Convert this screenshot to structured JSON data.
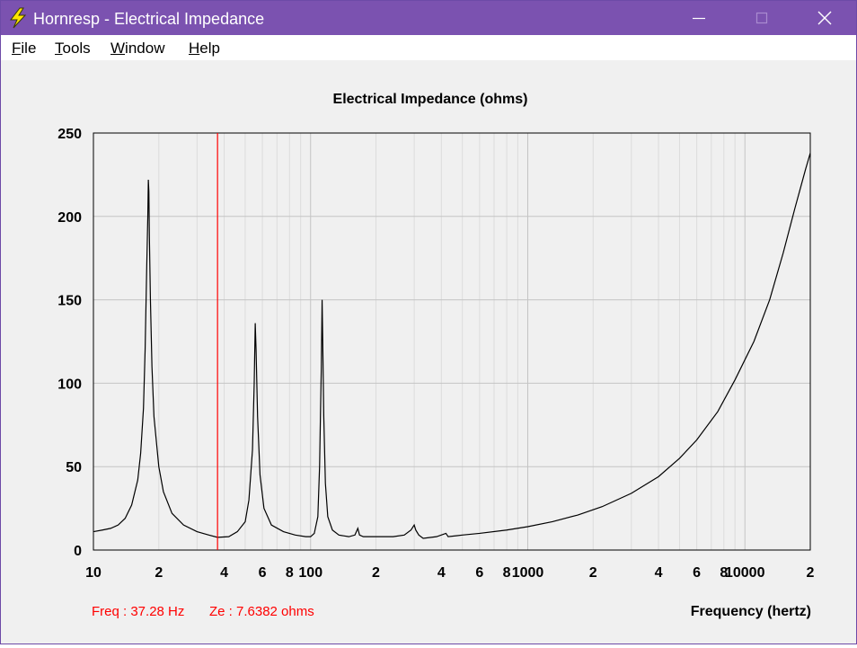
{
  "window": {
    "title": "Hornresp - Electrical Impedance",
    "accent_color": "#7b52b0",
    "icon": "lightning-bolt-icon"
  },
  "menu": {
    "items": [
      {
        "label": "File",
        "accel": "F",
        "rest": "ile"
      },
      {
        "label": "Tools",
        "accel": "T",
        "rest": "ools"
      },
      {
        "label": "Window",
        "accel": "W",
        "rest": "indow"
      },
      {
        "label": "Help",
        "accel": "H",
        "rest": "elp"
      }
    ]
  },
  "readout": {
    "freq_label": "Freq : 37.28 Hz",
    "ze_label": "Ze : 7.6382 ohms",
    "cursor_color": "#ff0000"
  },
  "chart_data": {
    "type": "line",
    "title": "Electrical Impedance (ohms)",
    "xlabel": "Frequency (hertz)",
    "ylabel": "",
    "x_scale": "log",
    "xlim": [
      10,
      20000
    ],
    "ylim": [
      0,
      250
    ],
    "yticks": [
      0,
      50,
      100,
      150,
      200,
      250
    ],
    "xtick_labels": [
      {
        "value": 10,
        "label": "10"
      },
      {
        "value": 20,
        "label": "2"
      },
      {
        "value": 40,
        "label": "4"
      },
      {
        "value": 60,
        "label": "6"
      },
      {
        "value": 80,
        "label": "8"
      },
      {
        "value": 100,
        "label": "100"
      },
      {
        "value": 200,
        "label": "2"
      },
      {
        "value": 400,
        "label": "4"
      },
      {
        "value": 600,
        "label": "6"
      },
      {
        "value": 800,
        "label": "8"
      },
      {
        "value": 1000,
        "label": "1000"
      },
      {
        "value": 2000,
        "label": "2"
      },
      {
        "value": 4000,
        "label": "4"
      },
      {
        "value": 6000,
        "label": "6"
      },
      {
        "value": 8000,
        "label": "8"
      },
      {
        "value": 10000,
        "label": "10000"
      },
      {
        "value": 20000,
        "label": "2"
      }
    ],
    "grid": true,
    "cursor_x": 37.28,
    "series": [
      {
        "name": "",
        "color": "#000000",
        "points": [
          [
            10,
            11
          ],
          [
            11,
            12
          ],
          [
            12,
            13
          ],
          [
            13,
            15
          ],
          [
            14,
            19
          ],
          [
            15,
            27
          ],
          [
            16,
            42
          ],
          [
            16.5,
            58
          ],
          [
            17,
            85
          ],
          [
            17.3,
            120
          ],
          [
            17.6,
            170
          ],
          [
            17.8,
            200
          ],
          [
            17.9,
            222
          ],
          [
            18.0,
            215
          ],
          [
            18.1,
            188
          ],
          [
            18.3,
            150
          ],
          [
            18.6,
            110
          ],
          [
            19,
            80
          ],
          [
            20,
            50
          ],
          [
            21,
            35
          ],
          [
            23,
            22
          ],
          [
            26,
            15
          ],
          [
            30,
            11
          ],
          [
            34,
            9
          ],
          [
            37.28,
            7.6
          ],
          [
            42,
            8
          ],
          [
            46,
            11
          ],
          [
            50,
            17
          ],
          [
            52,
            30
          ],
          [
            54,
            60
          ],
          [
            55,
            100
          ],
          [
            55.6,
            136
          ],
          [
            56.1,
            120
          ],
          [
            57,
            80
          ],
          [
            58.5,
            45
          ],
          [
            61,
            25
          ],
          [
            66,
            15
          ],
          [
            75,
            11
          ],
          [
            85,
            9
          ],
          [
            95,
            8
          ],
          [
            100,
            8
          ],
          [
            104,
            10
          ],
          [
            108,
            20
          ],
          [
            110,
            50
          ],
          [
            111,
            80
          ],
          [
            112,
            108
          ],
          [
            113,
            150
          ],
          [
            113.6,
            130
          ],
          [
            115,
            80
          ],
          [
            117,
            40
          ],
          [
            120,
            20
          ],
          [
            126,
            12
          ],
          [
            135,
            9
          ],
          [
            150,
            8
          ],
          [
            160,
            9
          ],
          [
            165,
            13
          ],
          [
            168,
            9
          ],
          [
            175,
            8
          ],
          [
            200,
            8
          ],
          [
            240,
            8
          ],
          [
            270,
            9
          ],
          [
            290,
            12
          ],
          [
            300,
            15
          ],
          [
            305,
            12
          ],
          [
            315,
            9
          ],
          [
            330,
            7
          ],
          [
            380,
            8
          ],
          [
            420,
            10
          ],
          [
            430,
            8
          ],
          [
            500,
            9
          ],
          [
            600,
            10
          ],
          [
            800,
            12
          ],
          [
            1000,
            14
          ],
          [
            1300,
            17
          ],
          [
            1700,
            21
          ],
          [
            2200,
            26
          ],
          [
            3000,
            34
          ],
          [
            4000,
            44
          ],
          [
            5000,
            55
          ],
          [
            6000,
            66
          ],
          [
            7500,
            83
          ],
          [
            9000,
            102
          ],
          [
            11000,
            125
          ],
          [
            13000,
            150
          ],
          [
            15000,
            178
          ],
          [
            17000,
            205
          ],
          [
            19000,
            228
          ],
          [
            20000,
            238
          ]
        ]
      }
    ]
  }
}
